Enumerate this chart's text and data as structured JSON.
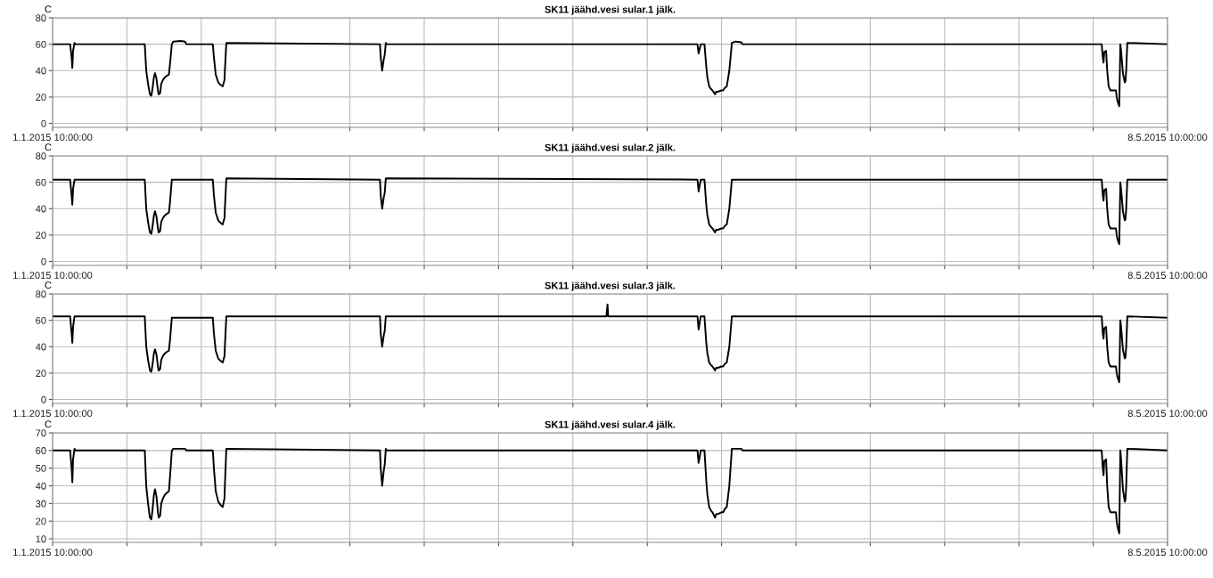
{
  "chart_data": [
    {
      "type": "line",
      "title": "SK11 jäähd.vesi sular.1 jälk.",
      "ylabel": "C",
      "grid": true,
      "x": [
        "2015-01-01T10:00",
        "2015-01-03T10:00",
        "2015-01-03T14:00",
        "2015-01-03T16:00",
        "2015-01-03T18:00",
        "2015-01-03T22:00",
        "2015-01-04T00:00",
        "2015-01-11T22:00",
        "2015-01-12T02:00",
        "2015-01-12T07:00",
        "2015-01-12T12:00",
        "2015-01-12T16:00",
        "2015-01-12T19:00",
        "2015-01-12T23:00",
        "2015-01-13T02:00",
        "2015-01-13T06:00",
        "2015-01-13T10:00",
        "2015-01-13T12:00",
        "2015-01-13T16:00",
        "2015-01-13T19:00",
        "2015-01-14T00:00",
        "2015-01-14T05:00",
        "2015-01-14T10:00",
        "2015-01-14T16:00",
        "2015-01-14T19:00",
        "2015-01-15T00:00",
        "2015-01-15T04:00",
        "2015-01-16T00:00",
        "2015-01-16T12:00",
        "2015-01-16T16:00",
        "2015-01-19T16:00",
        "2015-01-19T19:00",
        "2015-01-20T00:00",
        "2015-01-20T07:00",
        "2015-01-20T14:00",
        "2015-01-20T19:00",
        "2015-01-21T00:00",
        "2015-01-21T01:00",
        "2015-01-21T05:00",
        "2015-02-07T17:00",
        "2015-02-07T19:00",
        "2015-02-07T23:00",
        "2015-02-08T03:00",
        "2015-02-08T06:00",
        "2015-02-08T09:00",
        "2015-02-08T11:00",
        "2015-03-15T21:00",
        "2015-03-16T00:00",
        "2015-03-16T06:00",
        "2015-03-16T16:00",
        "2015-03-16T21:00",
        "2015-03-17T00:00",
        "2015-03-17T05:00",
        "2015-03-17T10:00",
        "2015-03-17T14:00",
        "2015-03-17T21:00",
        "2015-03-18T00:00",
        "2015-03-18T05:00",
        "2015-03-18T14:00",
        "2015-03-18T19:00",
        "2015-03-19T00:00",
        "2015-03-19T05:00",
        "2015-03-19T12:00",
        "2015-03-19T19:00",
        "2015-03-20T05:00",
        "2015-03-20T21:00",
        "2015-03-21T00:00",
        "2015-04-30T17:00",
        "2015-04-30T22:00",
        "2015-05-01T01:00",
        "2015-05-01T03:00",
        "2015-05-01T05:00",
        "2015-05-01T10:00",
        "2015-05-01T13:00",
        "2015-05-01T17:00",
        "2015-05-01T22:00",
        "2015-05-02T03:00",
        "2015-05-02T13:00",
        "2015-05-02T15:00",
        "2015-05-02T17:00",
        "2015-05-02T22:00",
        "2015-05-03T01:00",
        "2015-05-03T03:00",
        "2015-05-03T08:00",
        "2015-05-03T13:00",
        "2015-05-03T15:00",
        "2015-05-03T17:00",
        "2015-05-03T20:00",
        "2015-05-08T10:00"
      ],
      "series": [
        {
          "color": "#000000",
          "values": [
            60,
            60,
            50,
            42,
            55,
            61,
            60,
            60,
            40,
            30,
            22,
            21,
            26,
            35,
            38,
            34,
            25,
            22,
            23,
            30,
            33,
            35,
            36,
            37,
            45,
            60,
            62,
            62.5,
            62,
            60,
            60,
            50,
            37,
            31,
            29,
            28,
            33,
            40,
            61,
            60,
            50,
            40,
            48,
            52,
            61,
            60,
            60,
            53,
            60,
            60,
            43,
            35,
            28,
            26,
            25,
            22,
            24,
            24,
            25,
            25,
            27,
            28,
            40,
            61,
            62,
            61.5,
            60,
            60,
            60,
            50,
            46,
            54,
            55,
            40,
            28,
            25,
            25,
            25,
            20,
            17,
            13,
            60,
            55,
            38,
            31,
            32,
            40,
            61,
            60
          ]
        }
      ],
      "xlim": [
        "2015-01-01T10:00",
        "2015-05-08T10:00"
      ],
      "ylim": [
        -3,
        80
      ],
      "yticks": [
        0,
        20,
        40,
        60,
        80
      ],
      "xticks": [
        {
          "value": "2015-01-01T10:00",
          "label": "1.1.2015 10:00:00"
        },
        {
          "value": "2015-01-09T21:12",
          "label": null
        },
        {
          "value": "2015-01-18T08:24",
          "label": null
        },
        {
          "value": "2015-01-26T19:36",
          "label": null
        },
        {
          "value": "2015-02-04T06:48",
          "label": null
        },
        {
          "value": "2015-02-12T18:00",
          "label": null
        },
        {
          "value": "2015-02-21T05:12",
          "label": null
        },
        {
          "value": "2015-03-01T16:24",
          "label": null
        },
        {
          "value": "2015-03-10T03:36",
          "label": null
        },
        {
          "value": "2015-03-18T14:48",
          "label": null
        },
        {
          "value": "2015-03-27T02:00",
          "label": null
        },
        {
          "value": "2015-04-04T13:12",
          "label": null
        },
        {
          "value": "2015-04-13T00:24",
          "label": null
        },
        {
          "value": "2015-04-21T11:36",
          "label": null
        },
        {
          "value": "2015-04-29T22:48",
          "label": null
        },
        {
          "value": "2015-05-08T10:00",
          "label": "8.5.2015 10:00:00"
        }
      ]
    },
    {
      "type": "line",
      "title": "SK11 jäähd.vesi sular.2 jälk.",
      "ylabel": "C",
      "grid": true,
      "x": [
        "2015-01-01T10:00",
        "2015-01-03T10:00",
        "2015-01-03T14:00",
        "2015-01-03T16:00",
        "2015-01-03T18:00",
        "2015-01-03T22:00",
        "2015-01-04T00:00",
        "2015-01-11T22:00",
        "2015-01-12T02:00",
        "2015-01-12T07:00",
        "2015-01-12T12:00",
        "2015-01-12T16:00",
        "2015-01-12T19:00",
        "2015-01-12T23:00",
        "2015-01-13T02:00",
        "2015-01-13T06:00",
        "2015-01-13T10:00",
        "2015-01-13T12:00",
        "2015-01-13T16:00",
        "2015-01-13T19:00",
        "2015-01-14T00:00",
        "2015-01-14T05:00",
        "2015-01-14T10:00",
        "2015-01-14T16:00",
        "2015-01-14T19:00",
        "2015-01-15T00:00",
        "2015-01-15T04:00",
        "2015-01-16T00:00",
        "2015-01-16T12:00",
        "2015-01-16T16:00",
        "2015-01-19T16:00",
        "2015-01-19T19:00",
        "2015-01-20T00:00",
        "2015-01-20T07:00",
        "2015-01-20T14:00",
        "2015-01-20T19:00",
        "2015-01-21T00:00",
        "2015-01-21T01:00",
        "2015-01-21T05:00",
        "2015-02-07T17:00",
        "2015-02-07T19:00",
        "2015-02-07T23:00",
        "2015-02-08T03:00",
        "2015-02-08T06:00",
        "2015-02-08T09:00",
        "2015-02-08T11:00",
        "2015-03-15T21:00",
        "2015-03-16T00:00",
        "2015-03-16T06:00",
        "2015-03-16T16:00",
        "2015-03-16T21:00",
        "2015-03-17T00:00",
        "2015-03-17T05:00",
        "2015-03-17T10:00",
        "2015-03-17T14:00",
        "2015-03-17T21:00",
        "2015-03-18T00:00",
        "2015-03-18T05:00",
        "2015-03-18T14:00",
        "2015-03-18T19:00",
        "2015-03-19T00:00",
        "2015-03-19T05:00",
        "2015-03-19T12:00",
        "2015-03-19T19:00",
        "2015-03-20T05:00",
        "2015-03-20T21:00",
        "2015-03-21T00:00",
        "2015-04-30T17:00",
        "2015-04-30T22:00",
        "2015-05-01T01:00",
        "2015-05-01T03:00",
        "2015-05-01T05:00",
        "2015-05-01T10:00",
        "2015-05-01T13:00",
        "2015-05-01T17:00",
        "2015-05-01T22:00",
        "2015-05-02T03:00",
        "2015-05-02T13:00",
        "2015-05-02T15:00",
        "2015-05-02T17:00",
        "2015-05-02T22:00",
        "2015-05-03T01:00",
        "2015-05-03T03:00",
        "2015-05-03T08:00",
        "2015-05-03T13:00",
        "2015-05-03T15:00",
        "2015-05-03T17:00",
        "2015-05-03T20:00",
        "2015-05-08T10:00"
      ],
      "series": [
        {
          "color": "#000000",
          "values": [
            62,
            62,
            50,
            43,
            55,
            62,
            62,
            62,
            40,
            30,
            22,
            21,
            26,
            35,
            38,
            34,
            25,
            22,
            23,
            30,
            33,
            35,
            36,
            37,
            45,
            62,
            62,
            62,
            62,
            62,
            62,
            50,
            37,
            31,
            29,
            28,
            33,
            40,
            63,
            62,
            50,
            40,
            48,
            52,
            63,
            63,
            62,
            53,
            62,
            62,
            43,
            35,
            28,
            26,
            25,
            22,
            24,
            24,
            25,
            25,
            27,
            28,
            40,
            62,
            62,
            62,
            62,
            62,
            62,
            50,
            46,
            54,
            55,
            40,
            28,
            25,
            25,
            25,
            20,
            17,
            13,
            60,
            55,
            38,
            31,
            32,
            40,
            62,
            62
          ]
        }
      ],
      "xlim": [
        "2015-01-01T10:00",
        "2015-05-08T10:00"
      ],
      "ylim": [
        -3,
        80
      ],
      "yticks": [
        0,
        20,
        40,
        60,
        80
      ],
      "xticks": [
        {
          "value": "2015-01-01T10:00",
          "label": "1.1.2015 10:00:00"
        },
        {
          "value": "2015-01-09T21:12",
          "label": null
        },
        {
          "value": "2015-01-18T08:24",
          "label": null
        },
        {
          "value": "2015-01-26T19:36",
          "label": null
        },
        {
          "value": "2015-02-04T06:48",
          "label": null
        },
        {
          "value": "2015-02-12T18:00",
          "label": null
        },
        {
          "value": "2015-02-21T05:12",
          "label": null
        },
        {
          "value": "2015-03-01T16:24",
          "label": null
        },
        {
          "value": "2015-03-10T03:36",
          "label": null
        },
        {
          "value": "2015-03-18T14:48",
          "label": null
        },
        {
          "value": "2015-03-27T02:00",
          "label": null
        },
        {
          "value": "2015-04-04T13:12",
          "label": null
        },
        {
          "value": "2015-04-13T00:24",
          "label": null
        },
        {
          "value": "2015-04-21T11:36",
          "label": null
        },
        {
          "value": "2015-04-29T22:48",
          "label": null
        },
        {
          "value": "2015-05-08T10:00",
          "label": "8.5.2015 10:00:00"
        }
      ]
    },
    {
      "type": "line",
      "title": "SK11 jäähd.vesi sular.3 jälk.",
      "ylabel": "C",
      "grid": true,
      "x": [
        "2015-01-01T10:00",
        "2015-01-03T10:00",
        "2015-01-03T14:00",
        "2015-01-03T16:00",
        "2015-01-03T18:00",
        "2015-01-03T22:00",
        "2015-01-04T00:00",
        "2015-01-11T22:00",
        "2015-01-12T02:00",
        "2015-01-12T07:00",
        "2015-01-12T12:00",
        "2015-01-12T16:00",
        "2015-01-12T19:00",
        "2015-01-12T23:00",
        "2015-01-13T02:00",
        "2015-01-13T06:00",
        "2015-01-13T10:00",
        "2015-01-13T12:00",
        "2015-01-13T16:00",
        "2015-01-13T19:00",
        "2015-01-14T00:00",
        "2015-01-14T05:00",
        "2015-01-14T10:00",
        "2015-01-14T16:00",
        "2015-01-14T19:00",
        "2015-01-15T00:00",
        "2015-01-15T04:00",
        "2015-01-16T00:00",
        "2015-01-16T12:00",
        "2015-01-16T16:00",
        "2015-01-19T16:00",
        "2015-01-19T19:00",
        "2015-01-20T00:00",
        "2015-01-20T07:00",
        "2015-01-20T14:00",
        "2015-01-20T19:00",
        "2015-01-21T00:00",
        "2015-01-21T01:00",
        "2015-01-21T05:00",
        "2015-02-07T17:00",
        "2015-02-07T19:00",
        "2015-02-07T23:00",
        "2015-02-08T03:00",
        "2015-02-08T06:00",
        "2015-02-08T09:00",
        "2015-02-08T11:00",
        "2015-03-05T12:00",
        "2015-03-05T15:00",
        "2015-03-05T17:00",
        "2015-03-15T21:00",
        "2015-03-16T00:00",
        "2015-03-16T06:00",
        "2015-03-16T16:00",
        "2015-03-16T21:00",
        "2015-03-17T00:00",
        "2015-03-17T05:00",
        "2015-03-17T10:00",
        "2015-03-17T14:00",
        "2015-03-17T21:00",
        "2015-03-18T00:00",
        "2015-03-18T05:00",
        "2015-03-18T14:00",
        "2015-03-18T19:00",
        "2015-03-19T00:00",
        "2015-03-19T05:00",
        "2015-03-19T12:00",
        "2015-03-19T19:00",
        "2015-03-20T05:00",
        "2015-03-20T21:00",
        "2015-03-21T00:00",
        "2015-04-30T17:00",
        "2015-04-30T22:00",
        "2015-05-01T01:00",
        "2015-05-01T03:00",
        "2015-05-01T05:00",
        "2015-05-01T10:00",
        "2015-05-01T13:00",
        "2015-05-01T17:00",
        "2015-05-01T22:00",
        "2015-05-02T03:00",
        "2015-05-02T13:00",
        "2015-05-02T15:00",
        "2015-05-02T17:00",
        "2015-05-02T22:00",
        "2015-05-03T01:00",
        "2015-05-03T03:00",
        "2015-05-03T08:00",
        "2015-05-03T13:00",
        "2015-05-03T15:00",
        "2015-05-03T17:00",
        "2015-05-03T20:00",
        "2015-05-08T10:00"
      ],
      "series": [
        {
          "color": "#000000",
          "values": [
            63,
            63,
            50,
            43,
            55,
            63,
            63,
            63,
            40,
            30,
            22,
            21,
            26,
            35,
            38,
            34,
            25,
            22,
            23,
            30,
            33,
            35,
            36,
            37,
            45,
            62,
            62,
            62,
            62,
            62,
            62,
            50,
            37,
            31,
            29,
            28,
            33,
            40,
            63,
            63,
            50,
            40,
            48,
            52,
            63,
            63,
            63,
            72,
            63,
            63,
            53,
            63,
            63,
            43,
            35,
            28,
            26,
            25,
            22,
            24,
            24,
            25,
            25,
            27,
            28,
            40,
            63,
            63,
            63,
            63,
            63,
            63,
            50,
            46,
            54,
            55,
            40,
            28,
            25,
            25,
            25,
            20,
            17,
            13,
            60,
            55,
            38,
            31,
            32,
            40,
            63,
            62
          ]
        }
      ],
      "xlim": [
        "2015-01-01T10:00",
        "2015-05-08T10:00"
      ],
      "ylim": [
        -3,
        80
      ],
      "yticks": [
        0,
        20,
        40,
        60,
        80
      ],
      "xticks": [
        {
          "value": "2015-01-01T10:00",
          "label": "1.1.2015 10:00:00"
        },
        {
          "value": "2015-01-09T21:12",
          "label": null
        },
        {
          "value": "2015-01-18T08:24",
          "label": null
        },
        {
          "value": "2015-01-26T19:36",
          "label": null
        },
        {
          "value": "2015-02-04T06:48",
          "label": null
        },
        {
          "value": "2015-02-12T18:00",
          "label": null
        },
        {
          "value": "2015-02-21T05:12",
          "label": null
        },
        {
          "value": "2015-03-01T16:24",
          "label": null
        },
        {
          "value": "2015-03-10T03:36",
          "label": null
        },
        {
          "value": "2015-03-18T14:48",
          "label": null
        },
        {
          "value": "2015-03-27T02:00",
          "label": null
        },
        {
          "value": "2015-04-04T13:12",
          "label": null
        },
        {
          "value": "2015-04-13T00:24",
          "label": null
        },
        {
          "value": "2015-04-21T11:36",
          "label": null
        },
        {
          "value": "2015-04-29T22:48",
          "label": null
        },
        {
          "value": "2015-05-08T10:00",
          "label": "8.5.2015 10:00:00"
        }
      ]
    },
    {
      "type": "line",
      "title": "SK11 jäähd.vesi sular.4 jälk.",
      "ylabel": "C",
      "grid": true,
      "x": [
        "2015-01-01T10:00",
        "2015-01-03T10:00",
        "2015-01-03T14:00",
        "2015-01-03T16:00",
        "2015-01-03T18:00",
        "2015-01-03T22:00",
        "2015-01-04T00:00",
        "2015-01-11T22:00",
        "2015-01-12T02:00",
        "2015-01-12T07:00",
        "2015-01-12T12:00",
        "2015-01-12T16:00",
        "2015-01-12T19:00",
        "2015-01-12T23:00",
        "2015-01-13T02:00",
        "2015-01-13T06:00",
        "2015-01-13T10:00",
        "2015-01-13T12:00",
        "2015-01-13T16:00",
        "2015-01-13T19:00",
        "2015-01-14T00:00",
        "2015-01-14T05:00",
        "2015-01-14T10:00",
        "2015-01-14T16:00",
        "2015-01-14T19:00",
        "2015-01-15T00:00",
        "2015-01-15T04:00",
        "2015-01-16T00:00",
        "2015-01-16T12:00",
        "2015-01-16T16:00",
        "2015-01-19T16:00",
        "2015-01-19T19:00",
        "2015-01-20T00:00",
        "2015-01-20T07:00",
        "2015-01-20T14:00",
        "2015-01-20T19:00",
        "2015-01-21T00:00",
        "2015-01-21T01:00",
        "2015-01-21T05:00",
        "2015-02-07T17:00",
        "2015-02-07T19:00",
        "2015-02-07T23:00",
        "2015-02-08T03:00",
        "2015-02-08T06:00",
        "2015-02-08T09:00",
        "2015-02-08T11:00",
        "2015-03-15T21:00",
        "2015-03-16T00:00",
        "2015-03-16T06:00",
        "2015-03-16T16:00",
        "2015-03-16T21:00",
        "2015-03-17T00:00",
        "2015-03-17T05:00",
        "2015-03-17T10:00",
        "2015-03-17T14:00",
        "2015-03-17T21:00",
        "2015-03-18T00:00",
        "2015-03-18T05:00",
        "2015-03-18T14:00",
        "2015-03-18T19:00",
        "2015-03-19T00:00",
        "2015-03-19T05:00",
        "2015-03-19T12:00",
        "2015-03-19T19:00",
        "2015-03-20T05:00",
        "2015-03-20T21:00",
        "2015-03-21T00:00",
        "2015-04-30T17:00",
        "2015-04-30T22:00",
        "2015-05-01T01:00",
        "2015-05-01T03:00",
        "2015-05-01T05:00",
        "2015-05-01T10:00",
        "2015-05-01T13:00",
        "2015-05-01T17:00",
        "2015-05-01T22:00",
        "2015-05-02T03:00",
        "2015-05-02T13:00",
        "2015-05-02T15:00",
        "2015-05-02T17:00",
        "2015-05-02T22:00",
        "2015-05-03T01:00",
        "2015-05-03T03:00",
        "2015-05-03T08:00",
        "2015-05-03T13:00",
        "2015-05-03T15:00",
        "2015-05-03T17:00",
        "2015-05-03T20:00",
        "2015-05-08T10:00"
      ],
      "series": [
        {
          "color": "#000000",
          "values": [
            60,
            60,
            50,
            42,
            55,
            61,
            60,
            60,
            40,
            30,
            22,
            21,
            26,
            35,
            38,
            34,
            25,
            22,
            23,
            30,
            33,
            35,
            36,
            37,
            45,
            60,
            61,
            61,
            61,
            60,
            60,
            50,
            37,
            31,
            29,
            28,
            33,
            40,
            61,
            60,
            50,
            40,
            48,
            52,
            61,
            60,
            60,
            53,
            60,
            60,
            43,
            35,
            28,
            26,
            25,
            22,
            24,
            24,
            25,
            25,
            27,
            28,
            40,
            61,
            61,
            61,
            60,
            60,
            60,
            50,
            46,
            54,
            55,
            40,
            28,
            25,
            25,
            25,
            20,
            17,
            13,
            60,
            55,
            38,
            31,
            32,
            40,
            61,
            60
          ]
        }
      ],
      "xlim": [
        "2015-01-01T10:00",
        "2015-05-08T10:00"
      ],
      "ylim": [
        8,
        70
      ],
      "yticks": [
        10,
        20,
        30,
        40,
        50,
        60,
        70
      ],
      "xticks": [
        {
          "value": "2015-01-01T10:00",
          "label": "1.1.2015 10:00:00"
        },
        {
          "value": "2015-01-09T21:12",
          "label": null
        },
        {
          "value": "2015-01-18T08:24",
          "label": null
        },
        {
          "value": "2015-01-26T19:36",
          "label": null
        },
        {
          "value": "2015-02-04T06:48",
          "label": null
        },
        {
          "value": "2015-02-12T18:00",
          "label": null
        },
        {
          "value": "2015-02-21T05:12",
          "label": null
        },
        {
          "value": "2015-03-01T16:24",
          "label": null
        },
        {
          "value": "2015-03-10T03:36",
          "label": null
        },
        {
          "value": "2015-03-18T14:48",
          "label": null
        },
        {
          "value": "2015-03-27T02:00",
          "label": null
        },
        {
          "value": "2015-04-04T13:12",
          "label": null
        },
        {
          "value": "2015-04-13T00:24",
          "label": null
        },
        {
          "value": "2015-04-21T11:36",
          "label": null
        },
        {
          "value": "2015-04-29T22:48",
          "label": null
        },
        {
          "value": "2015-05-08T10:00",
          "label": "8.5.2015 10:00:00"
        }
      ]
    }
  ]
}
